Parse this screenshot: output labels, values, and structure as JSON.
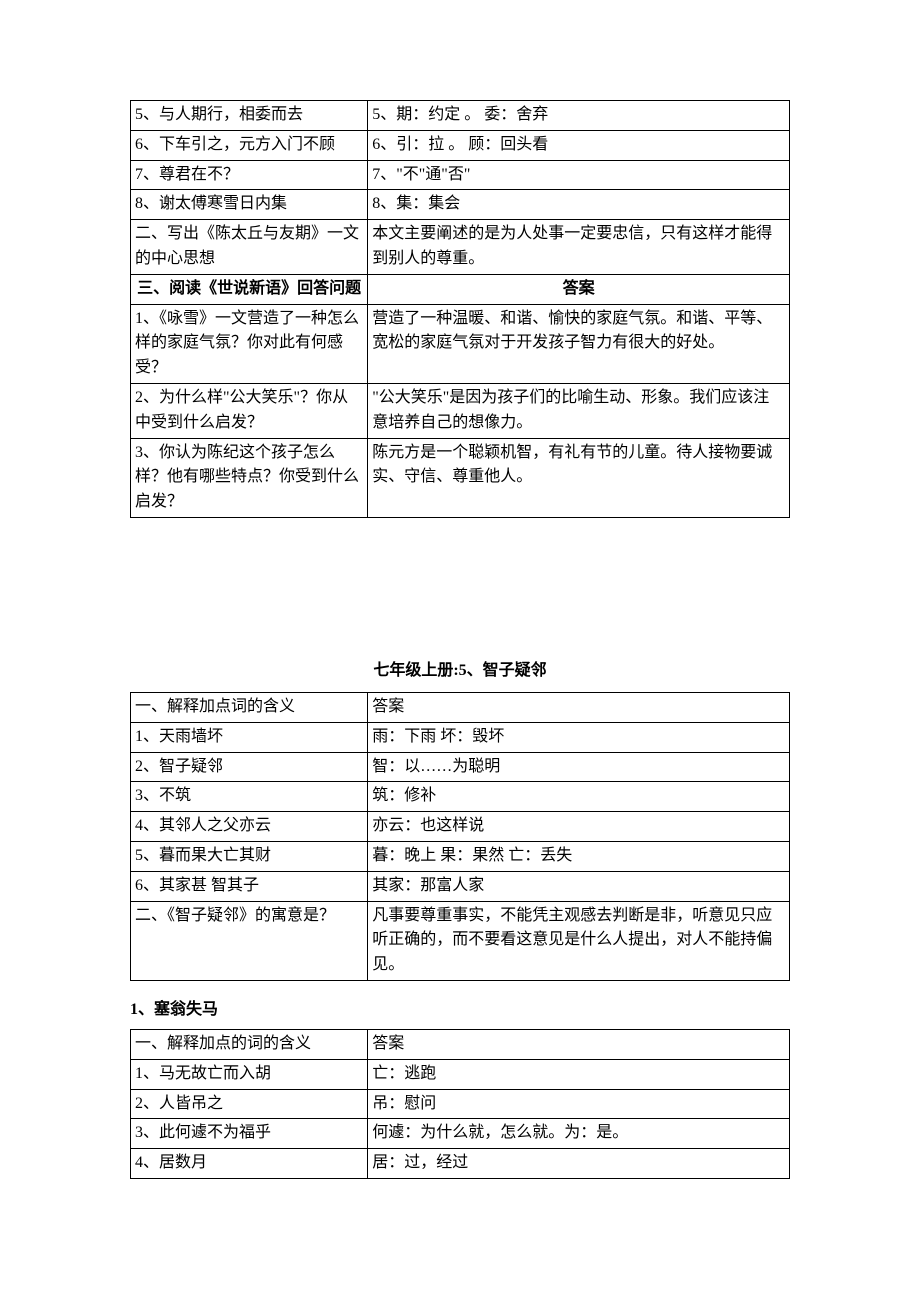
{
  "table1": {
    "col_left_width": "36%",
    "col_right_width": "64%",
    "rows": [
      {
        "left": "5、与人期行，相委而去",
        "right": "5、期：约定 。 委：舍弃"
      },
      {
        "left": "6、下车引之，元方入门不顾",
        "right": "6、引：拉 。 顾：回头看"
      },
      {
        "left": "7、尊君在不？",
        "right": "7、\"不\"通\"否\""
      },
      {
        "left": "8、谢太傅寒雪日内集",
        "right": "8、集：集会"
      },
      {
        "left": "二、写出《陈太丘与友期》一文的中心思想",
        "right": "本文主要阐述的是为人处事一定要忠信，只有这样才能得到别人的尊重。"
      },
      {
        "left": "三、阅读《世说新语》回答问题",
        "right": "答案",
        "left_bold": true,
        "left_center": true,
        "right_bold": true,
        "right_center": true
      },
      {
        "left": "1、《咏雪》一文营造了一种怎么样的家庭气氛？你对此有何感受？",
        "right": "营造了一种温暖、和谐、愉快的家庭气氛。和谐、平等、宽松的家庭气氛对于开发孩子智力有很大的好处。"
      },
      {
        "left": "2、为什么样\"公大笑乐\"？你从中受到什么启发？",
        "right": "\"公大笑乐\"是因为孩子们的比喻生动、形象。我们应该注意培养自己的想像力。"
      },
      {
        "left": "3、你认为陈纪这个孩子怎么样？他有哪些特点？你受到什么启发？",
        "right": "陈元方是一个聪颖机智，有礼有节的儿童。待人接物要诚实、守信、尊重他人。"
      }
    ]
  },
  "heading2": "七年级上册:5、智子疑邻",
  "table2": {
    "rows": [
      {
        "left": "一、解释加点词的含义",
        "right": "答案"
      },
      {
        "left": "1、天雨墙坏",
        "right": "雨：下雨   坏：毁坏"
      },
      {
        "left": "2、智子疑邻",
        "right": "智：以……为聪明"
      },
      {
        "left": "3、不筑",
        "right": "筑：修补"
      },
      {
        "left": "4、其邻人之父亦云",
        "right": "亦云：也这样说"
      },
      {
        "left": "5、暮而果大亡其财",
        "right": "暮：晚上  果：果然 亡：丢失"
      },
      {
        "left": "6、其家甚   智其子",
        "right": "其家：那富人家"
      },
      {
        "left": "二、《智子疑邻》的寓意是？",
        "right": "凡事要尊重事实，不能凭主观感去判断是非，听意见只应听正确的，而不要看这意见是什么人提出，对人不能持偏见。"
      }
    ]
  },
  "section3_title": "1、塞翁失马",
  "table3": {
    "rows": [
      {
        "left": "一、解释加点的词的含义",
        "right": "答案"
      },
      {
        "left": "1、马无故亡而入胡",
        "right": "亡：逃跑"
      },
      {
        "left": "2、人皆吊之",
        "right": "吊：慰问"
      },
      {
        "left": "3、此何遽不为福乎",
        "right": "何遽：为什么就，怎么就。为：是。"
      },
      {
        "left": "4、居数月",
        "right": "居：过，经过"
      }
    ]
  }
}
